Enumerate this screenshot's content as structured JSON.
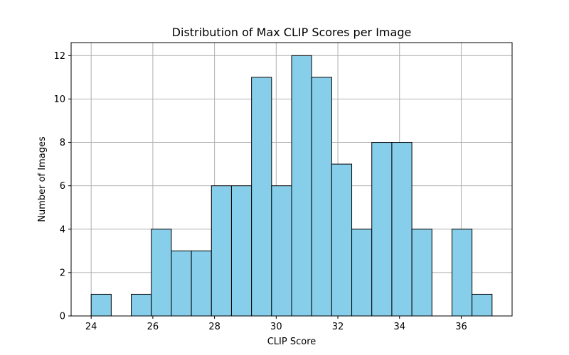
{
  "chart_data": {
    "type": "bar",
    "title": "Distribution of Max CLIP Scores per Image",
    "xlabel": "CLIP Score",
    "ylabel": "Number of Images",
    "bin_edges": [
      24.0,
      24.65,
      25.3,
      25.95,
      26.6,
      27.25,
      27.9,
      28.55,
      29.2,
      29.85,
      30.5,
      31.15,
      31.8,
      32.45,
      33.1,
      33.75,
      34.4,
      35.05,
      35.7,
      36.35,
      37.0
    ],
    "values": [
      1,
      0,
      1,
      4,
      3,
      3,
      6,
      6,
      11,
      6,
      12,
      11,
      7,
      4,
      8,
      8,
      4,
      0,
      4,
      1
    ],
    "xlim": [
      23.35,
      37.65
    ],
    "ylim": [
      0,
      12.6
    ],
    "xticks": [
      24,
      26,
      28,
      30,
      32,
      34,
      36
    ],
    "yticks": [
      0,
      2,
      4,
      6,
      8,
      10,
      12
    ],
    "grid": true,
    "bar_color": "#87CEEB",
    "edge_color": "#000000",
    "grid_color": "#b0b0b0"
  }
}
